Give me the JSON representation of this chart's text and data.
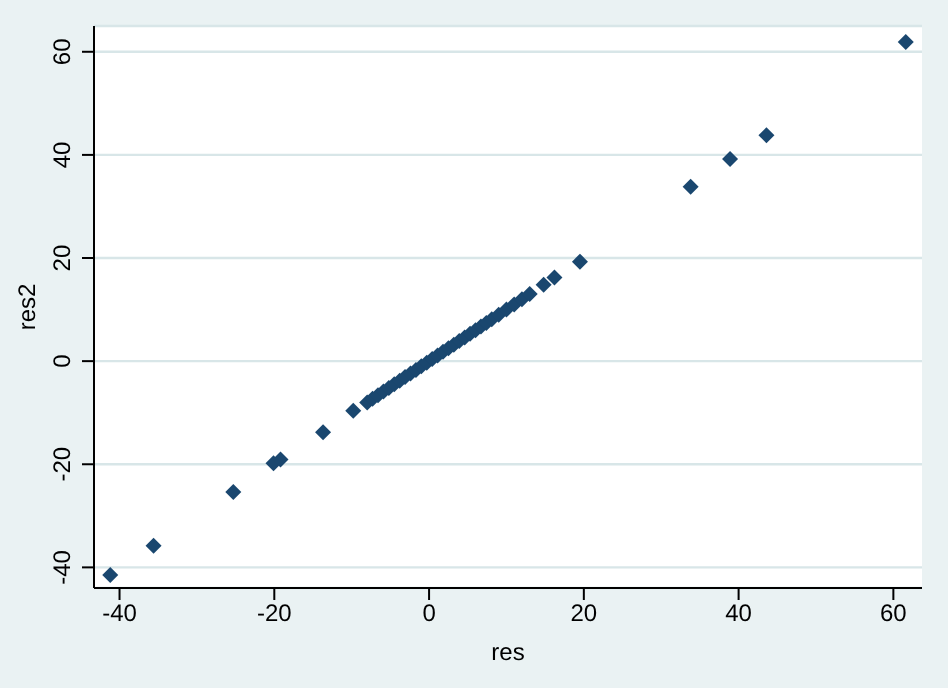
{
  "chart_data": {
    "type": "scatter",
    "xlabel": "res",
    "ylabel": "res2",
    "x": [
      -41.2,
      -35.6,
      -25.3,
      -20.1,
      -19.2,
      -13.7,
      -9.8,
      -8,
      -7.3,
      -6.6,
      -5.9,
      -5.2,
      -4.5,
      -3.8,
      -3.1,
      -2.4,
      -1.7,
      -1,
      -0.3,
      0.4,
      1.1,
      1.8,
      2.5,
      3.2,
      3.9,
      4.6,
      5.3,
      6,
      6.7,
      7.4,
      8.1,
      9,
      10,
      11,
      12,
      13,
      14.8,
      16.2,
      19.5,
      33.8,
      38.9,
      43.6,
      61.6
    ],
    "series": [
      {
        "color": "#1a476f",
        "values": [
          -41.5,
          -35.8,
          -25.4,
          -19.8,
          -19.1,
          -13.8,
          -9.6,
          -8,
          -7.3,
          -6.6,
          -5.9,
          -5.2,
          -4.5,
          -3.8,
          -3.1,
          -2.4,
          -1.7,
          -1,
          -0.3,
          0.4,
          1.1,
          1.8,
          2.5,
          3.2,
          3.9,
          4.6,
          5.3,
          6,
          6.7,
          7.4,
          8.1,
          9,
          10,
          11,
          12,
          13,
          14.8,
          16.2,
          19.3,
          33.8,
          39.2,
          43.8,
          61.9
        ]
      }
    ],
    "xlim": [
      -43.3,
      63.7
    ],
    "ylim": [
      -44,
      65
    ],
    "xticks": [
      -40,
      -20,
      0,
      20,
      40,
      60
    ],
    "yticks": [
      -40,
      -20,
      0,
      20,
      40,
      60
    ],
    "grid": "y",
    "marker": "diamond"
  }
}
